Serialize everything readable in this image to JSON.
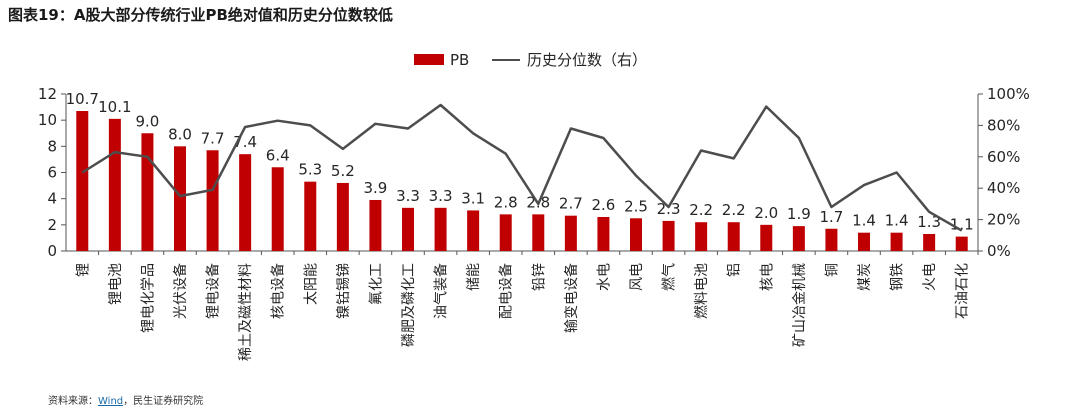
{
  "header": {
    "title": "图表19：A股大部分传统行业PB绝对值和历史分位数较低"
  },
  "source": {
    "prefix": "资料来源：",
    "link": "Wind",
    "suffix": "，民生证券研究院"
  },
  "colors": {
    "bar": "#c00000",
    "line": "#4d4d4d",
    "axis": "#555555",
    "text": "#262626"
  },
  "chart_data": {
    "type": "bar",
    "title": "",
    "categories": [
      "锂",
      "锂电池",
      "锂电化学品",
      "光伏设备",
      "锂电设备",
      "稀土及磁性材料",
      "核电设备",
      "太阳能",
      "镍钴锡锑",
      "氟化工",
      "磷肥及磷化工",
      "油气装备",
      "储能",
      "配电设备",
      "铅锌",
      "输变电设备",
      "水电",
      "风电",
      "燃气",
      "燃料电池",
      "铝",
      "核电",
      "矿山冶金机械",
      "铜",
      "煤炭",
      "钢铁",
      "火电",
      "石油石化"
    ],
    "series": [
      {
        "name": "PB",
        "axis": "left",
        "type": "bar",
        "values": [
          10.7,
          10.1,
          9.0,
          8.0,
          7.7,
          7.4,
          6.4,
          5.3,
          5.2,
          3.9,
          3.3,
          3.3,
          3.1,
          2.8,
          2.8,
          2.7,
          2.6,
          2.5,
          2.3,
          2.2,
          2.2,
          2.0,
          1.9,
          1.7,
          1.4,
          1.4,
          1.3,
          1.1
        ],
        "labels": [
          "10.7",
          "10.1",
          "9.0",
          "8.0",
          "7.7",
          "7.4",
          "6.4",
          "5.3",
          "5.2",
          "3.9",
          "3.3",
          "3.3",
          "3.1",
          "2.8",
          "2.8",
          "2.7",
          "2.6",
          "2.5",
          "2.3",
          "2.2",
          "2.2",
          "2.0",
          "1.9",
          "1.7",
          "1.4",
          "1.4",
          "1.3",
          "1.1"
        ]
      },
      {
        "name": "历史分位数（右）",
        "axis": "right",
        "type": "line",
        "values": [
          0.5,
          0.63,
          0.6,
          0.35,
          0.39,
          0.79,
          0.83,
          0.8,
          0.65,
          0.81,
          0.78,
          0.93,
          0.75,
          0.62,
          0.3,
          0.78,
          0.72,
          0.48,
          0.28,
          0.64,
          0.59,
          0.92,
          0.72,
          0.28,
          0.42,
          0.5,
          0.25,
          0.13
        ]
      }
    ],
    "y_left": {
      "min": 0,
      "max": 12,
      "ticks": [
        "0",
        "2",
        "4",
        "6",
        "8",
        "10",
        "12"
      ]
    },
    "y_right": {
      "min": 0,
      "max": 1,
      "ticks": [
        "0%",
        "20%",
        "40%",
        "60%",
        "80%",
        "100%"
      ]
    },
    "legend": {
      "position": "top-center"
    },
    "grid": false
  }
}
